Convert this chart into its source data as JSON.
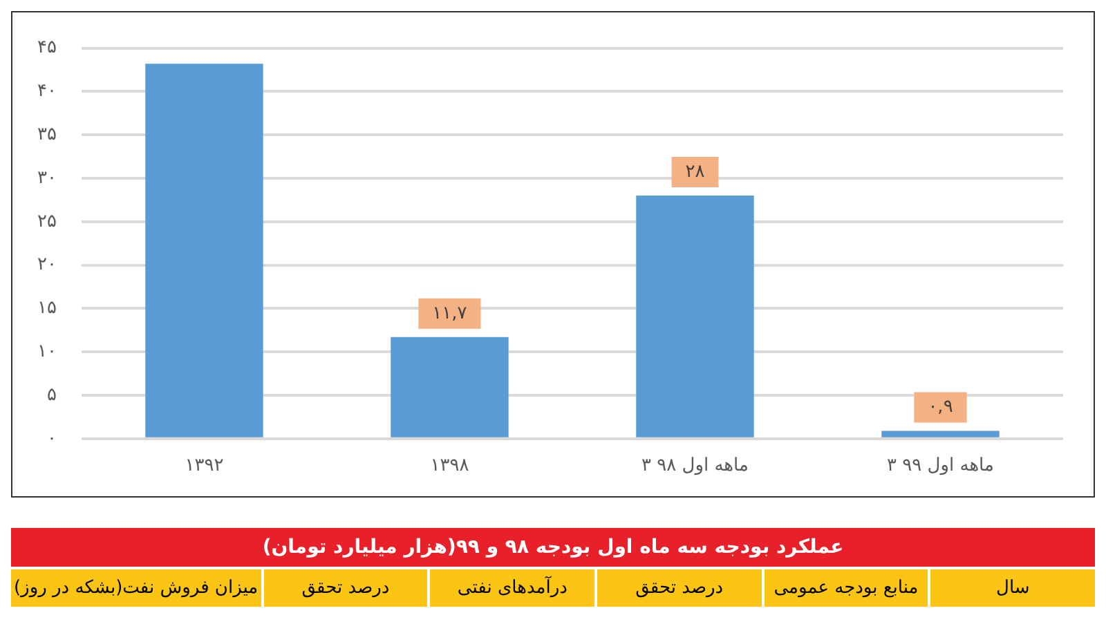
{
  "chart_data": {
    "type": "bar",
    "categories": [
      "۱۳۹۲",
      "۱۳۹۸",
      "۳ ماهه اول ۹۸",
      "۳ ماهه اول ۹۹"
    ],
    "values": [
      43.2,
      11.7,
      28,
      0.9
    ],
    "color": "#5b9bd5",
    "value_labels": [
      null,
      "۱۱,۷",
      "۲۸",
      "۰,۹"
    ],
    "ylim": [
      0,
      45
    ],
    "yticks": [
      {
        "value": 0,
        "label": "۰"
      },
      {
        "value": 5,
        "label": "۵"
      },
      {
        "value": 10,
        "label": "۱۰"
      },
      {
        "value": 15,
        "label": "۱۵"
      },
      {
        "value": 20,
        "label": "۲۰"
      },
      {
        "value": 25,
        "label": "۲۵"
      },
      {
        "value": 30,
        "label": "۳۰"
      },
      {
        "value": 35,
        "label": "۳۵"
      },
      {
        "value": 40,
        "label": "۴۰"
      },
      {
        "value": 45,
        "label": "۴۵"
      }
    ],
    "grid": "y",
    "legend": false,
    "annotations": [
      "عملکرد بودجه سه ماه اول بودجه ۹۸ و ۹۹(هزار میلیارد تومان)",
      "سال",
      "منابع بودجه عمومی",
      "درصد تحقق",
      "درآمدهای نفتی",
      "درصد تحقق",
      "میزان فروش نفت(بشکه در روز)"
    ]
  }
}
